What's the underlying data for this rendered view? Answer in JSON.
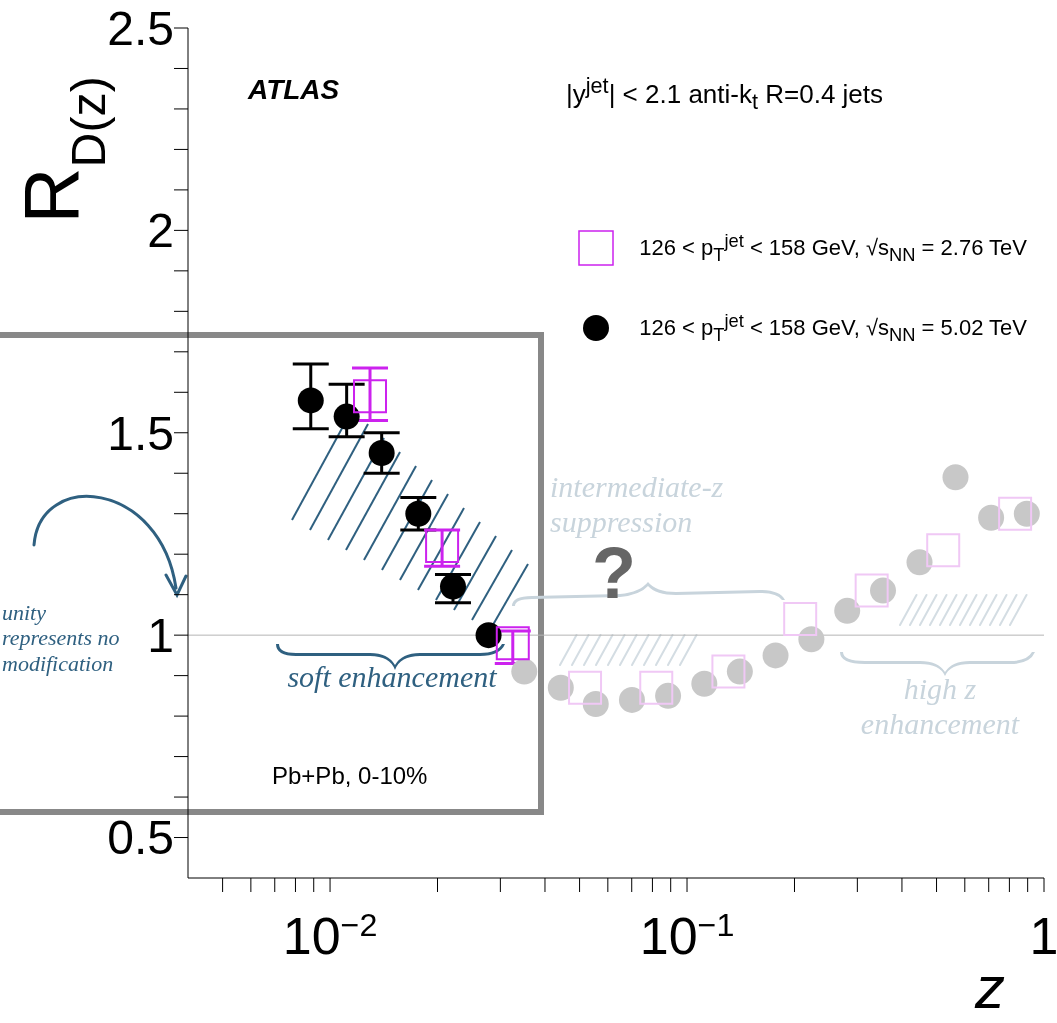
{
  "chart_data": {
    "type": "scatter",
    "xlabel": "z",
    "ylabel": "R$_{D(z)}$",
    "log": "x",
    "xlim": [
      0.004,
      1
    ],
    "ylim": [
      0.4,
      2.5
    ],
    "xticks": [
      {
        "value": 0.005,
        "label": null
      },
      {
        "value": 0.006,
        "label": null
      },
      {
        "value": 0.007,
        "label": null
      },
      {
        "value": 0.008,
        "label": null
      },
      {
        "value": 0.009,
        "label": null
      },
      {
        "value": 0.01,
        "label": "10$^{−2}$"
      },
      {
        "value": 0.02,
        "label": null
      },
      {
        "value": 0.03,
        "label": null
      },
      {
        "value": 0.04,
        "label": null
      },
      {
        "value": 0.05,
        "label": null
      },
      {
        "value": 0.06,
        "label": null
      },
      {
        "value": 0.07,
        "label": null
      },
      {
        "value": 0.08,
        "label": null
      },
      {
        "value": 0.09,
        "label": null
      },
      {
        "value": 0.1,
        "label": "10$^{−1}$"
      },
      {
        "value": 0.2,
        "label": null
      },
      {
        "value": 0.3,
        "label": null
      },
      {
        "value": 0.4,
        "label": null
      },
      {
        "value": 0.5,
        "label": null
      },
      {
        "value": 0.6,
        "label": null
      },
      {
        "value": 0.7,
        "label": null
      },
      {
        "value": 0.8,
        "label": null
      },
      {
        "value": 0.9,
        "label": null
      },
      1
    ],
    "yticks": [
      0.5,
      {
        "value": 0.6,
        "label": null
      },
      {
        "value": 0.7,
        "label": null
      },
      {
        "value": 0.8,
        "label": null
      },
      {
        "value": 0.9,
        "label": null
      },
      1,
      {
        "value": 1.1,
        "label": null
      },
      {
        "value": 1.2,
        "label": null
      },
      {
        "value": 1.3,
        "label": null
      },
      {
        "value": 1.4,
        "label": null
      },
      1.5,
      {
        "value": 1.6,
        "label": null
      },
      {
        "value": 1.7,
        "label": null
      },
      {
        "value": 1.8,
        "label": null
      },
      {
        "value": 1.9,
        "label": null
      },
      2,
      {
        "value": 2.1,
        "label": null
      },
      {
        "value": 2.2,
        "label": null
      },
      {
        "value": 2.3,
        "label": null
      },
      {
        "value": 2.4,
        "label": null
      },
      2.5
    ],
    "legend": "top right",
    "grid": false,
    "ref_lines": [
      {
        "axis": "y",
        "value": 1,
        "color": "#b4b4b4"
      }
    ],
    "series": [
      {
        "name": "126  <  p$_{T}$$^{jet}$  <  158 GeV, √s$_{NN}$ = 2.76 TeV",
        "color": "#cc22ee",
        "marker": "square",
        "x": [
          0.01294,
          0.0206,
          0.0325
        ],
        "values": [
          1.59,
          1.22,
          0.98
        ],
        "errors": [
          [
            1.53,
            1.66
          ],
          [
            1.17,
            1.26
          ],
          [
            0.93,
            1.01
          ]
        ]
      },
      {
        "name": "126  <  p$_{T}$$^{jet}$  <  158 GeV, √s$_{NN}$ = 5.02 TeV",
        "color": "#000000",
        "marker": "circle",
        "x": [
          0.00883,
          0.01113,
          0.01395,
          0.01767,
          0.0221,
          0.0278
        ],
        "values": [
          1.58,
          1.54,
          1.45,
          1.3,
          1.12,
          1.0
        ],
        "errors": [
          [
            1.51,
            1.67
          ],
          [
            1.49,
            1.62
          ],
          [
            1.4,
            1.5
          ],
          [
            1.26,
            1.34
          ],
          [
            1.08,
            1.15
          ],
          null
        ]
      },
      {
        "color": "#f0c8f5",
        "marker": "square",
        "x": [
          0.0518,
          0.082,
          0.1306,
          0.2075,
          0.329,
          0.522,
          0.83
        ],
        "values": [
          0.87,
          0.87,
          0.91,
          1.04,
          1.11,
          1.21,
          1.3
        ]
      },
      {
        "color": "#c8c8c8",
        "marker": "circle",
        "x": [
          0.035,
          0.0443,
          0.0555,
          0.0701,
          0.0885,
          0.1118,
          0.1406,
          0.177,
          0.223,
          0.281,
          0.354,
          0.448,
          0.565,
          0.711,
          0.895
        ],
        "values": [
          0.91,
          0.87,
          0.83,
          0.84,
          0.85,
          0.88,
          0.91,
          0.95,
          0.99,
          1.06,
          1.11,
          1.18,
          1.39,
          1.29,
          1.3
        ]
      }
    ],
    "annotations": [
      "ATLAS",
      "|y$^{jet}$| < 2.1 anti-k$_{t}$ R=0.4 jets",
      "Pb+Pb, 0-10%",
      "unity represents no modification",
      "soft enhancement",
      "intermediate-z suppression",
      "?",
      "high z enhancement"
    ]
  }
}
